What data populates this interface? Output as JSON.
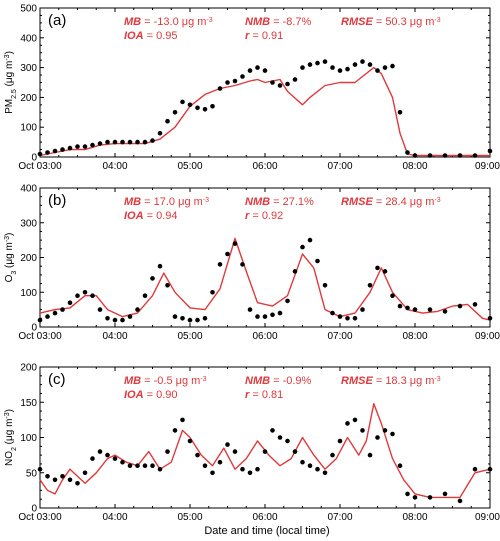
{
  "colors": {
    "model": "#e0393e",
    "obs": "#000000",
    "frame": "#000000"
  },
  "xlabel": "Date and time (local time)",
  "chart_data": [
    {
      "type": "line",
      "panel_label": "(a)",
      "ylabel": {
        "main": "PM",
        "sub": "2.5",
        "unit": " (μg m",
        "exp": "-3",
        "close": ")"
      },
      "ylim": [
        0,
        500
      ],
      "yticks": [
        "0",
        "100",
        "200",
        "300",
        "400",
        "500"
      ],
      "xlim": [
        3.0,
        9.0
      ],
      "xticks": [
        "Oct 03:00",
        "04:00",
        "05:00",
        "06:00",
        "07:00",
        "08:00",
        "09:00"
      ],
      "stats": {
        "mb_label": "MB",
        "mb_value": " = -13.0 μg m",
        "mb_exp": "-3",
        "nmb_label": "NMB",
        "nmb_value": " = -8.7%",
        "rmse_label": "RMSE",
        "rmse_value": " = 50.3 μg m",
        "rmse_exp": "-3",
        "ioa_label": "IOA",
        "ioa_value": " = 0.95",
        "r_label": "r",
        "r_value": " = 0.91"
      },
      "series": [
        {
          "role": "model",
          "style": "line",
          "x": [
            3.0,
            3.2,
            3.4,
            3.6,
            3.8,
            4.0,
            4.2,
            4.4,
            4.6,
            4.8,
            5.0,
            5.2,
            5.4,
            5.6,
            5.8,
            5.9,
            6.0,
            6.2,
            6.3,
            6.5,
            6.6,
            6.8,
            7.0,
            7.2,
            7.3,
            7.45,
            7.55,
            7.7,
            7.8,
            7.9,
            8.0,
            8.5,
            9.0
          ],
          "y": [
            5,
            15,
            25,
            25,
            40,
            45,
            45,
            45,
            60,
            100,
            170,
            210,
            230,
            240,
            255,
            260,
            250,
            260,
            220,
            175,
            200,
            240,
            250,
            250,
            270,
            300,
            280,
            200,
            80,
            10,
            5,
            5,
            5
          ]
        },
        {
          "role": "obs",
          "style": "points",
          "x": [
            3.0,
            3.1,
            3.2,
            3.3,
            3.4,
            3.5,
            3.6,
            3.7,
            3.8,
            3.9,
            4.0,
            4.1,
            4.2,
            4.3,
            4.4,
            4.5,
            4.6,
            4.7,
            4.8,
            4.9,
            5.0,
            5.1,
            5.2,
            5.3,
            5.4,
            5.5,
            5.6,
            5.7,
            5.8,
            5.9,
            6.0,
            6.1,
            6.2,
            6.3,
            6.4,
            6.5,
            6.6,
            6.7,
            6.8,
            6.9,
            7.0,
            7.1,
            7.2,
            7.3,
            7.4,
            7.5,
            7.6,
            7.7,
            7.8,
            7.9,
            8.0,
            8.2,
            8.4,
            8.6,
            8.8,
            9.0
          ],
          "y": [
            10,
            15,
            20,
            25,
            30,
            35,
            35,
            40,
            45,
            50,
            50,
            50,
            50,
            50,
            50,
            55,
            80,
            120,
            150,
            185,
            175,
            165,
            160,
            170,
            230,
            250,
            255,
            270,
            290,
            300,
            290,
            250,
            240,
            245,
            260,
            300,
            310,
            315,
            320,
            300,
            290,
            295,
            310,
            320,
            310,
            290,
            300,
            305,
            150,
            15,
            5,
            5,
            5,
            5,
            5,
            20
          ]
        }
      ]
    },
    {
      "type": "line",
      "panel_label": "(b)",
      "ylabel": {
        "main": "O",
        "sub": "3",
        "unit": " (μg m",
        "exp": "-3",
        "close": ")"
      },
      "ylim": [
        0,
        400
      ],
      "yticks": [
        "0",
        "100",
        "200",
        "300",
        "400"
      ],
      "xlim": [
        3.0,
        9.0
      ],
      "xticks": [
        "Oct 03:00",
        "04:00",
        "05:00",
        "06:00",
        "07:00",
        "08:00",
        "09:00"
      ],
      "stats": {
        "mb_label": "MB",
        "mb_value": " = 17.0 μg m",
        "mb_exp": "-3",
        "nmb_label": "NMB",
        "nmb_value": " = 27.1%",
        "rmse_label": "RMSE",
        "rmse_value": " = 28.4 μg m",
        "rmse_exp": "-3",
        "ioa_label": "IOA",
        "ioa_value": " = 0.94",
        "r_label": "r",
        "r_value": " = 0.92"
      },
      "series": [
        {
          "role": "model",
          "style": "line",
          "x": [
            3.0,
            3.2,
            3.4,
            3.6,
            3.75,
            3.9,
            4.1,
            4.3,
            4.5,
            4.65,
            4.8,
            5.0,
            5.2,
            5.4,
            5.6,
            5.75,
            5.9,
            6.1,
            6.3,
            6.5,
            6.65,
            6.8,
            7.0,
            7.2,
            7.4,
            7.55,
            7.7,
            7.9,
            8.1,
            8.3,
            8.5,
            8.7,
            8.9,
            9.0
          ],
          "y": [
            40,
            50,
            55,
            90,
            90,
            50,
            30,
            40,
            90,
            155,
            100,
            55,
            50,
            110,
            255,
            160,
            70,
            60,
            90,
            210,
            170,
            50,
            30,
            40,
            100,
            170,
            100,
            50,
            40,
            45,
            60,
            65,
            25,
            20
          ]
        },
        {
          "role": "obs",
          "style": "points",
          "x": [
            3.0,
            3.1,
            3.2,
            3.3,
            3.4,
            3.5,
            3.6,
            3.7,
            3.8,
            3.9,
            4.0,
            4.1,
            4.2,
            4.3,
            4.4,
            4.5,
            4.6,
            4.7,
            4.8,
            4.9,
            5.0,
            5.1,
            5.2,
            5.3,
            5.4,
            5.5,
            5.6,
            5.7,
            5.8,
            5.9,
            6.0,
            6.1,
            6.2,
            6.3,
            6.4,
            6.5,
            6.6,
            6.7,
            6.8,
            6.9,
            7.0,
            7.1,
            7.2,
            7.3,
            7.4,
            7.5,
            7.6,
            7.7,
            7.8,
            7.9,
            8.0,
            8.2,
            8.4,
            8.6,
            8.8,
            9.0
          ],
          "y": [
            20,
            30,
            40,
            50,
            70,
            90,
            100,
            90,
            50,
            25,
            20,
            20,
            30,
            50,
            90,
            140,
            175,
            120,
            30,
            25,
            20,
            20,
            25,
            100,
            180,
            210,
            240,
            180,
            50,
            30,
            30,
            35,
            40,
            75,
            160,
            230,
            250,
            190,
            120,
            40,
            30,
            25,
            25,
            50,
            120,
            170,
            160,
            90,
            60,
            55,
            50,
            50,
            45,
            60,
            65,
            25
          ]
        }
      ]
    },
    {
      "type": "line",
      "panel_label": "(c)",
      "ylabel": {
        "main": "NO",
        "sub": "2",
        "unit": " (μg m",
        "exp": "-3",
        "close": ")"
      },
      "ylim": [
        0,
        200
      ],
      "yticks": [
        "0",
        "50",
        "100",
        "150",
        "200"
      ],
      "xlim": [
        3.0,
        9.0
      ],
      "xticks": [
        "Oct 03:00",
        "04:00",
        "05:00",
        "06:00",
        "07:00",
        "08:00",
        "09:00"
      ],
      "stats": {
        "mb_label": "MB",
        "mb_value": " = -0.5 μg m",
        "mb_exp": "-3",
        "nmb_label": "NMB",
        "nmb_value": " = -0.9%",
        "rmse_label": "RMSE",
        "rmse_value": " = 18.3 μg m",
        "rmse_exp": "-3",
        "ioa_label": "IOA",
        "ioa_value": " = 0.90",
        "r_label": "r",
        "r_value": " = 0.81"
      },
      "series": [
        {
          "role": "model",
          "style": "line",
          "x": [
            3.0,
            3.1,
            3.2,
            3.3,
            3.4,
            3.5,
            3.6,
            3.75,
            3.9,
            4.0,
            4.15,
            4.3,
            4.45,
            4.6,
            4.75,
            4.9,
            5.0,
            5.15,
            5.3,
            5.45,
            5.6,
            5.75,
            5.9,
            6.05,
            6.2,
            6.35,
            6.5,
            6.65,
            6.8,
            6.95,
            7.1,
            7.25,
            7.35,
            7.45,
            7.55,
            7.7,
            7.85,
            8.0,
            8.2,
            8.4,
            8.6,
            8.8,
            9.0
          ],
          "y": [
            40,
            25,
            20,
            40,
            55,
            45,
            35,
            50,
            70,
            75,
            65,
            60,
            80,
            55,
            65,
            110,
            100,
            75,
            60,
            85,
            55,
            70,
            95,
            75,
            60,
            70,
            100,
            75,
            55,
            70,
            100,
            75,
            95,
            148,
            120,
            70,
            40,
            20,
            15,
            15,
            15,
            50,
            55
          ]
        },
        {
          "role": "obs",
          "style": "points",
          "x": [
            3.0,
            3.1,
            3.2,
            3.3,
            3.4,
            3.5,
            3.6,
            3.7,
            3.8,
            3.9,
            4.0,
            4.1,
            4.2,
            4.3,
            4.4,
            4.5,
            4.6,
            4.7,
            4.8,
            4.9,
            5.0,
            5.1,
            5.2,
            5.3,
            5.4,
            5.5,
            5.6,
            5.7,
            5.8,
            5.9,
            6.0,
            6.1,
            6.2,
            6.3,
            6.4,
            6.5,
            6.6,
            6.7,
            6.8,
            6.9,
            7.0,
            7.1,
            7.2,
            7.3,
            7.4,
            7.5,
            7.6,
            7.7,
            7.8,
            7.9,
            8.0,
            8.2,
            8.4,
            8.6,
            8.8,
            9.0
          ],
          "y": [
            55,
            45,
            40,
            45,
            40,
            35,
            50,
            70,
            80,
            75,
            70,
            65,
            60,
            60,
            60,
            60,
            55,
            80,
            110,
            125,
            95,
            75,
            60,
            50,
            65,
            90,
            80,
            55,
            50,
            55,
            80,
            110,
            100,
            95,
            80,
            65,
            60,
            55,
            50,
            75,
            95,
            120,
            125,
            110,
            75,
            100,
            110,
            105,
            60,
            20,
            15,
            15,
            20,
            10,
            55,
            55
          ]
        }
      ]
    }
  ]
}
